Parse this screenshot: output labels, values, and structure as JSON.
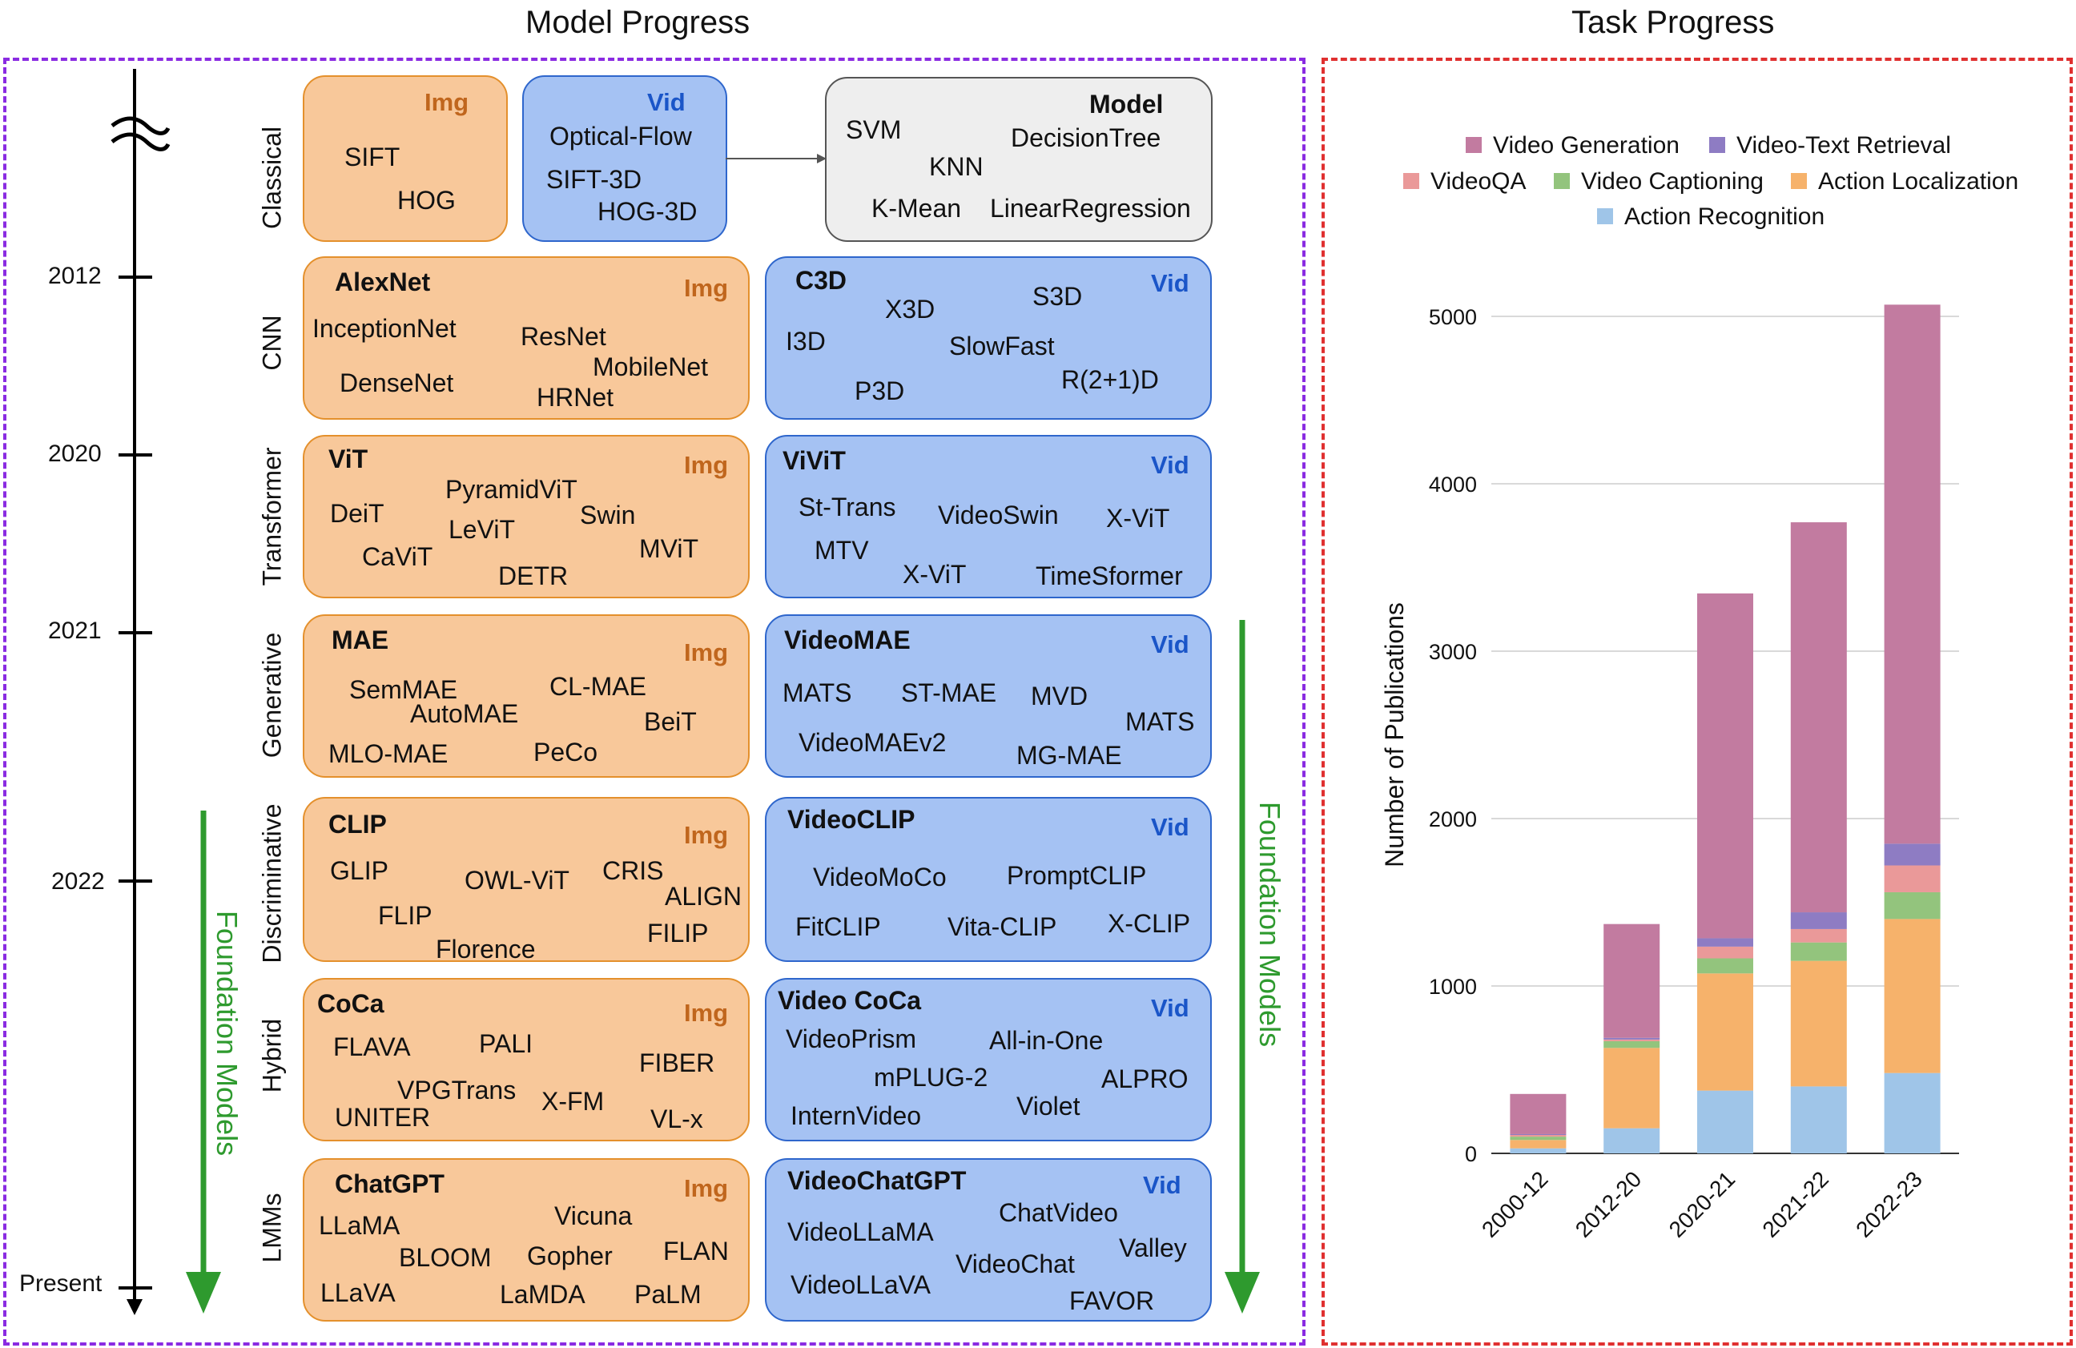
{
  "titles": {
    "left": "Model Progress",
    "right": "Task Progress"
  },
  "timeline": {
    "years": [
      "2012",
      "2020",
      "2021",
      "2022",
      "Present"
    ]
  },
  "rows": [
    {
      "label": "Classical"
    },
    {
      "label": "CNN"
    },
    {
      "label": "Transformer"
    },
    {
      "label": "Generative"
    },
    {
      "label": "Discriminative"
    },
    {
      "label": "Hybrid"
    },
    {
      "label": "LMMs"
    }
  ],
  "tags": {
    "img": "Img",
    "vid": "Vid",
    "model": "Model"
  },
  "classical": {
    "img": [
      "SIFT",
      "HOG"
    ],
    "vid": [
      "Optical-Flow",
      "SIFT-3D",
      "HOG-3D"
    ],
    "model": [
      "SVM",
      "DecisionTree",
      "KNN",
      "K-Mean",
      "LinearRegression"
    ]
  },
  "cnn": {
    "img_head": "AlexNet",
    "img": [
      "InceptionNet",
      "ResNet",
      "MobileNet",
      "DenseNet",
      "HRNet"
    ],
    "vid_head": "C3D",
    "vid": [
      "X3D",
      "S3D",
      "I3D",
      "SlowFast",
      "R(2+1)D",
      "P3D"
    ]
  },
  "transformer": {
    "img_head": "ViT",
    "img": [
      "PyramidViT",
      "DeiT",
      "LeViT",
      "Swin",
      "MViT",
      "CaViT",
      "DETR"
    ],
    "vid_head": "ViViT",
    "vid": [
      "St-Trans",
      "VideoSwin",
      "X-ViT",
      "MTV",
      "X-ViT",
      "TimeSformer"
    ]
  },
  "generative": {
    "img_head": "MAE",
    "img": [
      "SemMAE",
      "CL-MAE",
      "AutoMAE",
      "BeiT",
      "MLO-MAE",
      "PeCo"
    ],
    "vid_head": "VideoMAE",
    "vid": [
      "MATS",
      "ST-MAE",
      "MVD",
      "MATS",
      "VideoMAEv2",
      "MG-MAE"
    ]
  },
  "discriminative": {
    "img_head": "CLIP",
    "img": [
      "GLIP",
      "OWL-ViT",
      "CRIS",
      "ALIGN",
      "FLIP",
      "Florence",
      "FILIP"
    ],
    "vid_head": "VideoCLIP",
    "vid": [
      "VideoMoCo",
      "PromptCLIP",
      "FitCLIP",
      "Vita-CLIP",
      "X-CLIP"
    ]
  },
  "hybrid": {
    "img_head": "CoCa",
    "img": [
      "FLAVA",
      "PALI",
      "FIBER",
      "VPGTrans",
      "X-FM",
      "UNITER",
      "VL-x"
    ],
    "vid_head": "Video CoCa",
    "vid": [
      "VideoPrism",
      "All-in-One",
      "mPLUG-2",
      "ALPRO",
      "Violet",
      "InternVideo"
    ]
  },
  "lmms": {
    "img_head": "ChatGPT",
    "img": [
      "LLaMA",
      "Vicuna",
      "BLOOM",
      "Gopher",
      "FLAN",
      "LLaVA",
      "LaMDA",
      "PaLM"
    ],
    "vid_head": "VideoChatGPT",
    "vid": [
      "ChatVideo",
      "VideoLLaMA",
      "Valley",
      "VideoChat",
      "VideoLLaVA",
      "FAVOR"
    ]
  },
  "foundation_label": "Foundation Models",
  "colors": {
    "img_fill": "#f8c89a",
    "vid_fill": "#a5c2f3",
    "img_tag": "#c0661d",
    "vid_tag": "#1a55c8",
    "arrow_green": "#2e9a2e"
  },
  "chart_data": {
    "type": "bar",
    "stacked": true,
    "title": "",
    "xlabel": "",
    "ylabel": "Number of Publications",
    "ylim": [
      0,
      5200
    ],
    "yticks": [
      0,
      1000,
      2000,
      3000,
      4000,
      5000
    ],
    "categories": [
      "2000-12",
      "2012-20",
      "2020-21",
      "2021-22",
      "2022-23"
    ],
    "legend_position": "top",
    "grid": true,
    "series": [
      {
        "name": "Action Recognition",
        "color": "#9fc5e8",
        "values": [
          30,
          150,
          375,
          400,
          480
        ]
      },
      {
        "name": "Action Localization",
        "color": "#f6b26b",
        "values": [
          50,
          480,
          700,
          750,
          920
        ]
      },
      {
        "name": "Video Captioning",
        "color": "#93c47d",
        "values": [
          20,
          40,
          90,
          110,
          160
        ]
      },
      {
        "name": "VideoQA",
        "color": "#ea9999",
        "values": [
          10,
          10,
          70,
          80,
          160
        ]
      },
      {
        "name": "Video-Text Retrieval",
        "color": "#8e7cc3",
        "values": [
          5,
          10,
          50,
          100,
          130
        ]
      },
      {
        "name": "Video Generation",
        "color": "#c27ba0",
        "values": [
          240,
          680,
          2060,
          2330,
          3220
        ]
      }
    ],
    "legend_order": [
      "Video Generation",
      "Video-Text Retrieval",
      "VideoQA",
      "Video Captioning",
      "Action Localization",
      "Action Recognition"
    ]
  }
}
